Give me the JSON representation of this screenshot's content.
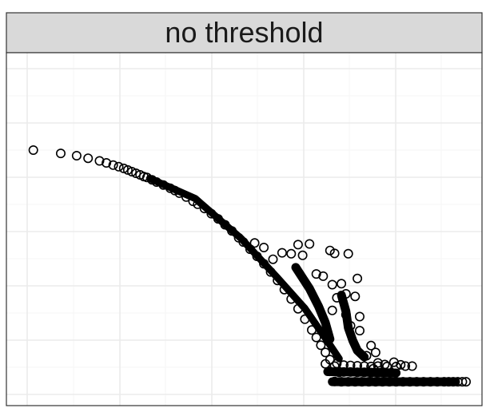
{
  "chart_data": {
    "type": "scatter",
    "title": "no threshold",
    "xlabel": "",
    "ylabel": "",
    "xlim": [
      0,
      100
    ],
    "ylim": [
      0,
      100
    ],
    "grid": true,
    "legend": "none",
    "marker": "open-circle",
    "colors": {
      "strip_fill": "#d9d9d9",
      "strip_text": "#1a1a1a",
      "panel_border": "#333333",
      "grid_major": "#ebebeb",
      "grid_minor": "#f5f5f5",
      "marker_stroke": "#000000"
    },
    "points": [
      [
        4.5,
        74.5
      ],
      [
        10.5,
        73.5
      ],
      [
        14,
        72.8
      ],
      [
        16.5,
        72
      ],
      [
        19,
        71.2
      ],
      [
        20.5,
        70.6
      ],
      [
        22,
        69.9
      ],
      [
        23.2,
        69.4
      ],
      [
        24.3,
        68.9
      ],
      [
        25.2,
        68.4
      ],
      [
        26.1,
        67.9
      ],
      [
        27,
        67.4
      ],
      [
        27.9,
        66.9
      ],
      [
        28.7,
        66.4
      ],
      [
        29.4,
        66.1
      ],
      [
        30.5,
        65.4
      ],
      [
        31.5,
        64.7
      ],
      [
        33,
        63.8
      ],
      [
        34.5,
        62.8
      ],
      [
        35.5,
        62.1
      ],
      [
        36.5,
        61.3
      ],
      [
        38,
        60.1
      ],
      [
        39.5,
        58.8
      ],
      [
        40.5,
        57.9
      ],
      [
        42,
        56.6
      ],
      [
        43.5,
        55
      ],
      [
        45,
        53.4
      ],
      [
        46.5,
        51.6
      ],
      [
        48,
        49.7
      ],
      [
        49.5,
        47.6
      ],
      [
        50.5,
        46.3
      ],
      [
        52,
        44.1
      ],
      [
        53.5,
        41.9
      ],
      [
        55,
        39.6
      ],
      [
        56.5,
        37.1
      ],
      [
        58,
        34.5
      ],
      [
        59.5,
        31.7
      ],
      [
        61,
        28.8
      ],
      [
        62.5,
        25.8
      ],
      [
        64,
        22.6
      ],
      [
        65.5,
        19.3
      ],
      [
        66.5,
        17
      ],
      [
        67.5,
        14.6
      ],
      [
        68.5,
        12.4
      ],
      [
        69.5,
        10.2
      ],
      [
        70.5,
        8.2
      ],
      [
        71.5,
        6.3
      ],
      [
        53,
        46
      ],
      [
        55,
        44.6
      ],
      [
        57,
        41
      ],
      [
        59,
        43
      ],
      [
        61,
        42.7
      ],
      [
        62.5,
        45.5
      ],
      [
        65,
        45.7
      ],
      [
        63.5,
        42.2
      ],
      [
        69.5,
        43.7
      ],
      [
        70.5,
        42.8
      ],
      [
        73.5,
        42.7
      ],
      [
        66.5,
        36.5
      ],
      [
        68,
        35.8
      ],
      [
        70,
        33.2
      ],
      [
        72,
        33.5
      ],
      [
        75.5,
        35.1
      ],
      [
        73,
        30.4
      ],
      [
        71,
        29.2
      ],
      [
        75,
        29.6
      ],
      [
        70,
        25.3
      ],
      [
        73,
        24
      ],
      [
        76,
        23.4
      ],
      [
        74,
        20.6
      ],
      [
        76,
        19.1
      ],
      [
        78.5,
        14.5
      ],
      [
        79.5,
        12.4
      ],
      [
        77.5,
        11.4
      ],
      [
        80,
        9.2
      ],
      [
        81.5,
        8.7
      ],
      [
        79,
        7.4
      ],
      [
        81,
        6.4
      ],
      [
        83.5,
        9.4
      ],
      [
        85,
        8.6
      ],
      [
        68.5,
        8.9
      ],
      [
        71,
        9
      ],
      [
        72.5,
        8.5
      ],
      [
        74,
        8.4
      ],
      [
        75.5,
        8.3
      ],
      [
        77,
        8.2
      ],
      [
        78.5,
        8.1
      ],
      [
        80,
        8.2
      ],
      [
        82,
        8.1
      ],
      [
        84,
        8.1
      ],
      [
        86,
        8.2
      ],
      [
        87.5,
        8.2
      ],
      [
        69.5,
        6.6
      ],
      [
        71,
        6.5
      ],
      [
        72.5,
        6.4
      ],
      [
        74,
        6.4
      ],
      [
        75.5,
        6.3
      ],
      [
        77,
        6.3
      ],
      [
        78.5,
        6.2
      ],
      [
        80,
        6.2
      ],
      [
        81.5,
        6.2
      ],
      [
        83,
        6.2
      ],
      [
        70.5,
        3.5
      ],
      [
        72,
        3.4
      ],
      [
        73.5,
        3.4
      ],
      [
        75,
        3.4
      ],
      [
        76.5,
        3.4
      ],
      [
        78,
        3.4
      ],
      [
        79.5,
        3.4
      ],
      [
        81,
        3.4
      ],
      [
        82.5,
        3.4
      ],
      [
        84,
        3.4
      ],
      [
        85.5,
        3.4
      ],
      [
        87,
        3.4
      ],
      [
        88.5,
        3.4
      ],
      [
        90,
        3.4
      ],
      [
        91.5,
        3.4
      ],
      [
        93,
        3.4
      ],
      [
        94.5,
        3.4
      ],
      [
        95.5,
        3.4
      ],
      [
        96.5,
        3.4
      ],
      [
        97.5,
        3.4
      ],
      [
        98.5,
        3.4
      ],
      [
        99.3,
        3.4
      ]
    ]
  }
}
